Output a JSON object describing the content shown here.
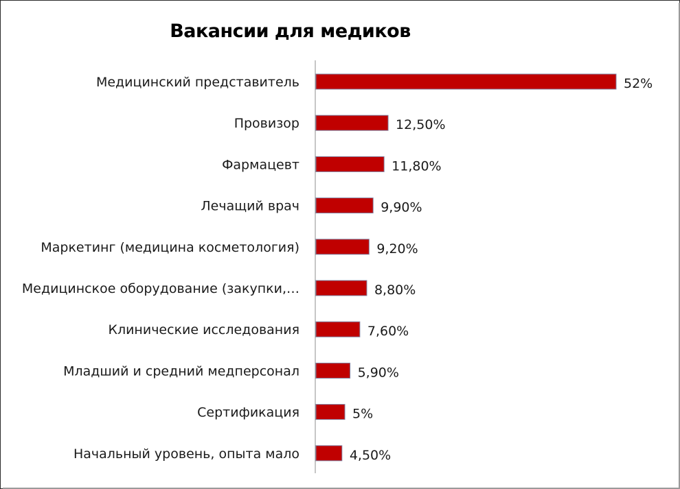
{
  "chart_data": {
    "type": "bar",
    "orientation": "horizontal",
    "title": "Вакансии для медиков",
    "categories": [
      "Медицинский представитель",
      "Провизор",
      "Фармацевт",
      "Лечащий врач",
      "Маркетинг (медицина косметология)",
      "Медицинское оборудование (закупки,…",
      "Клинические исследования",
      "Младший и средний медперсонал",
      "Сертификация",
      "Начальный уровень, опыта мало"
    ],
    "values": [
      52,
      12.5,
      11.8,
      9.9,
      9.2,
      8.8,
      7.6,
      5.9,
      5,
      4.5
    ],
    "data_labels": [
      "52%",
      "12,50%",
      "11,80%",
      "9,90%",
      "9,20%",
      "8,80%",
      "7,60%",
      "5,90%",
      "5%",
      "4,50%"
    ],
    "xlim": [
      0,
      52
    ],
    "bar_color": "#c00000",
    "bar_border_color": "#7f7f9f",
    "grid": false,
    "legend": "none"
  }
}
